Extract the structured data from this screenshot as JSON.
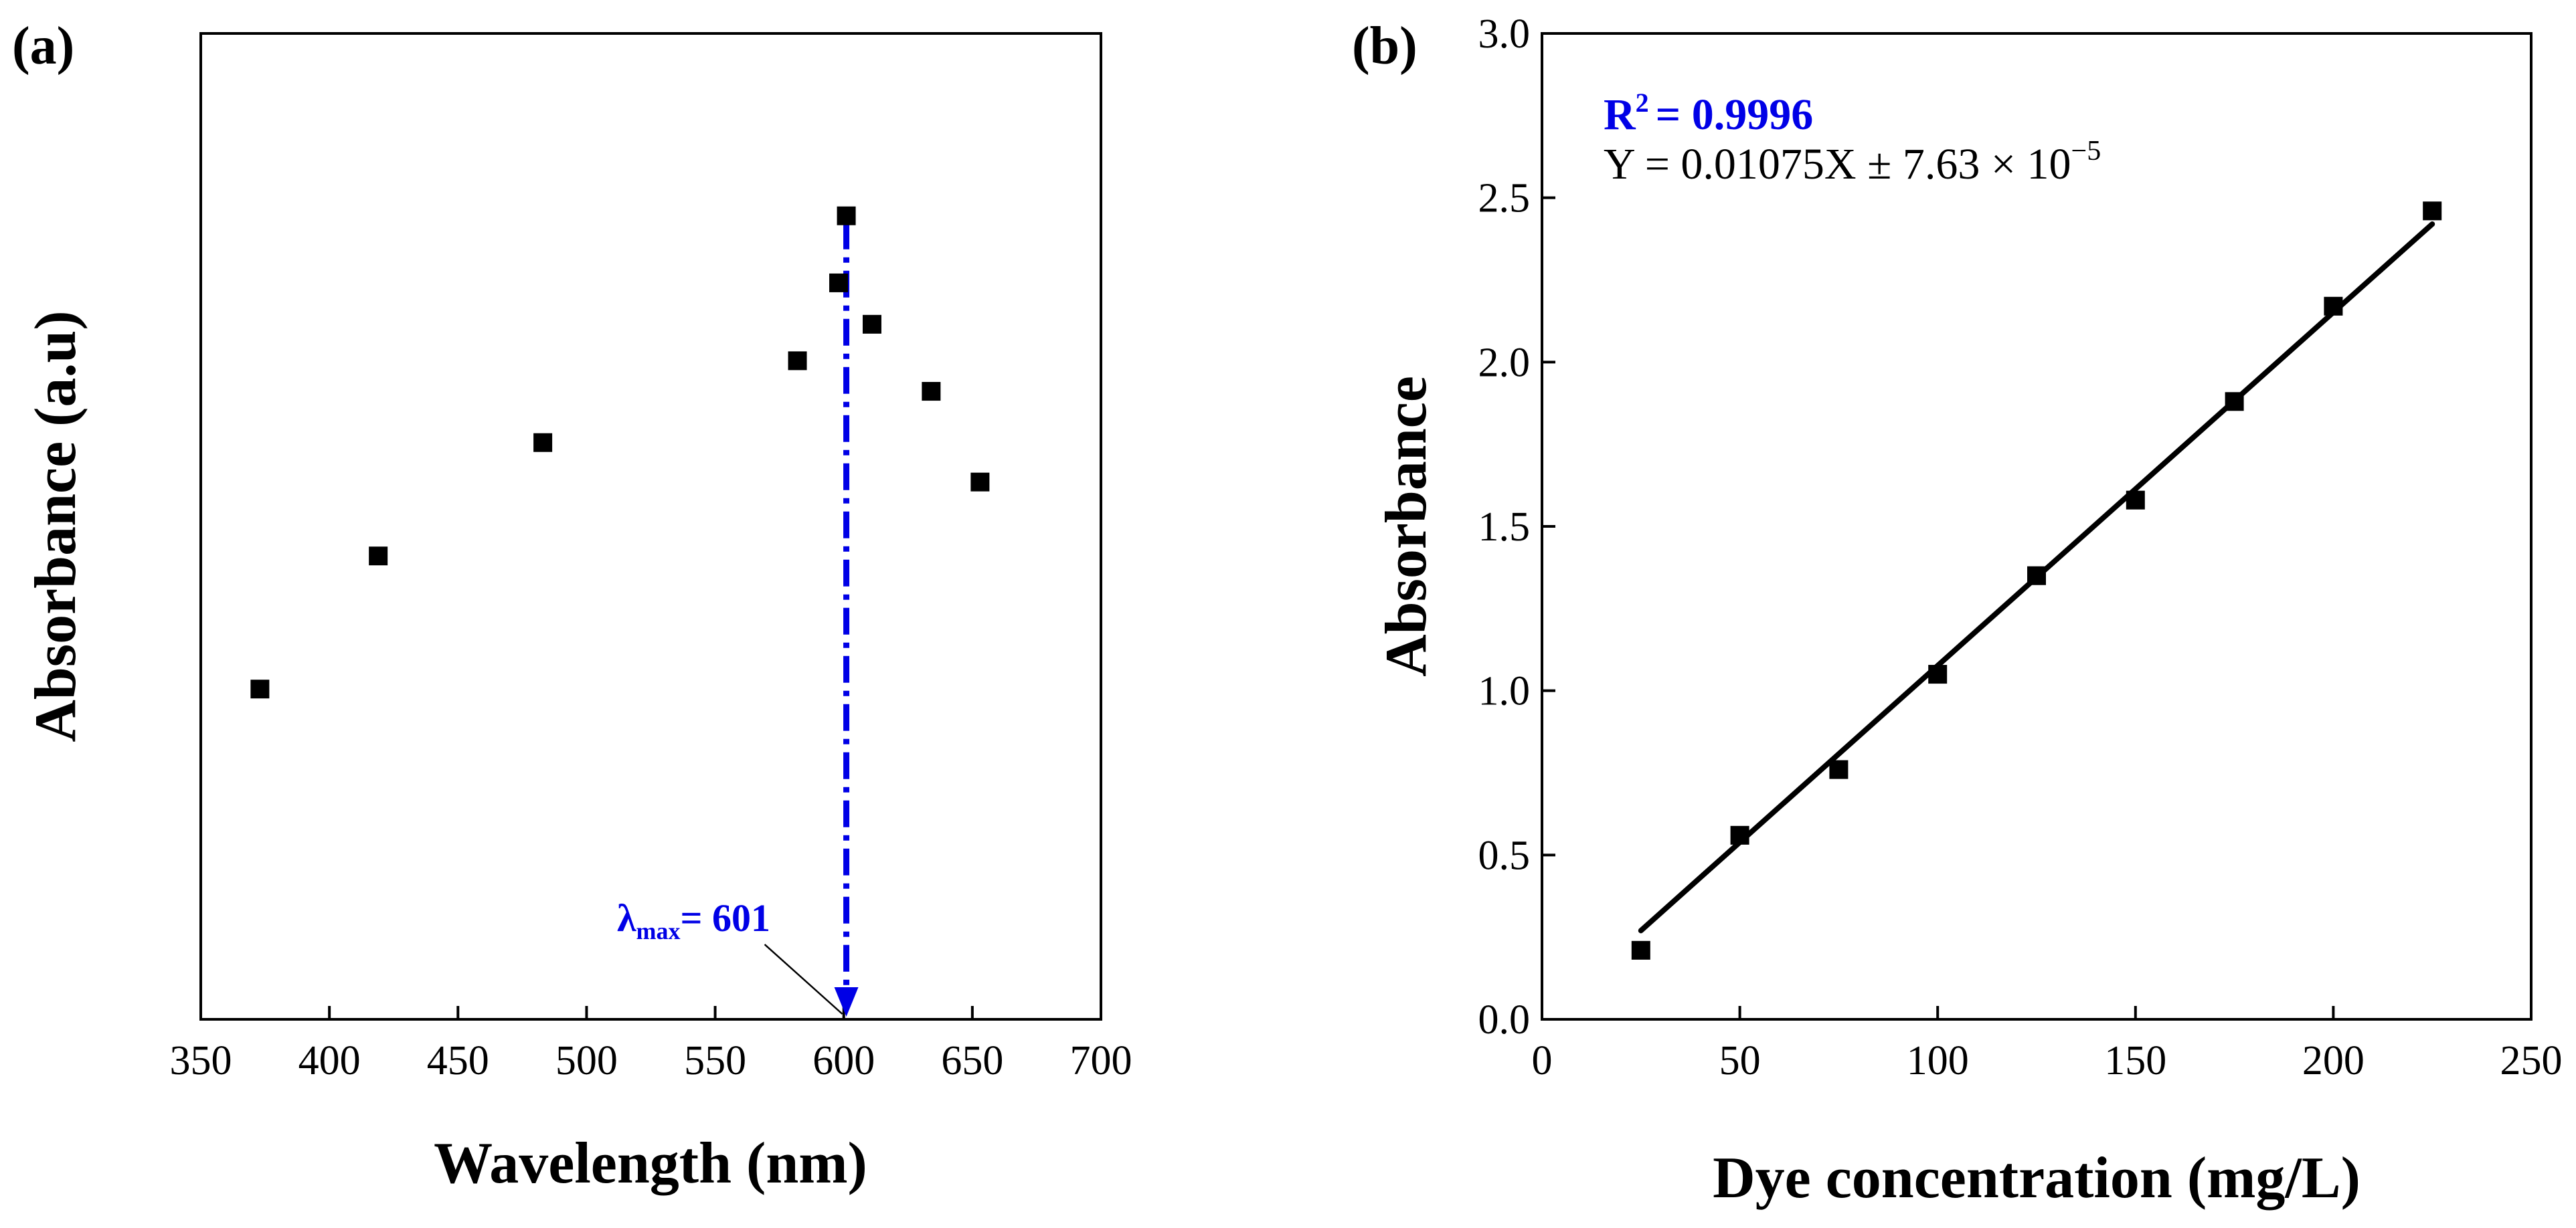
{
  "chart_data": [
    {
      "panel": "(a)",
      "type": "scatter",
      "xlabel": "Wavelength (nm)",
      "ylabel": "Absorbance (a.u)",
      "xlim": [
        350,
        700
      ],
      "xticks": [
        350,
        400,
        450,
        500,
        550,
        600,
        650,
        700
      ],
      "ylim": [
        0,
        1
      ],
      "yticks_labeled": false,
      "x": [
        373,
        419,
        483,
        582,
        598,
        601,
        611,
        634,
        653
      ],
      "y": [
        0.335,
        0.47,
        0.585,
        0.668,
        0.747,
        0.815,
        0.705,
        0.637,
        0.545
      ],
      "marker": "square",
      "annotation": {
        "lambda_symbol": "λ",
        "subscript": "max",
        "text": "= 601",
        "x": 601,
        "color": "#0000e6"
      }
    },
    {
      "panel": "(b)",
      "type": "scatter",
      "xlabel": "Dye concentration (mg/L)",
      "ylabel": "Absorbance",
      "xlim": [
        0,
        250
      ],
      "xticks": [
        0,
        50,
        100,
        150,
        200,
        250
      ],
      "ylim": [
        0,
        3.0
      ],
      "yticks": [
        "0.0",
        "0.5",
        "1.0",
        "1.5",
        "2.0",
        "2.5",
        "3.0"
      ],
      "x": [
        25,
        50,
        75,
        100,
        125,
        150,
        175,
        200,
        225
      ],
      "y": [
        0.21,
        0.56,
        0.76,
        1.05,
        1.35,
        1.58,
        1.88,
        2.17,
        2.46
      ],
      "fit_line": {
        "x": [
          25,
          225
        ],
        "y": [
          0.27,
          2.42
        ]
      },
      "marker": "square",
      "equation": {
        "r2_prefix": "R",
        "r2_sup": "2",
        "r2_value": "= 0.9996",
        "y_text": "Y  = 0.01075X ± 7.63 × 10",
        "y_exp": "−5",
        "r2_color": "#0000e6"
      }
    }
  ]
}
